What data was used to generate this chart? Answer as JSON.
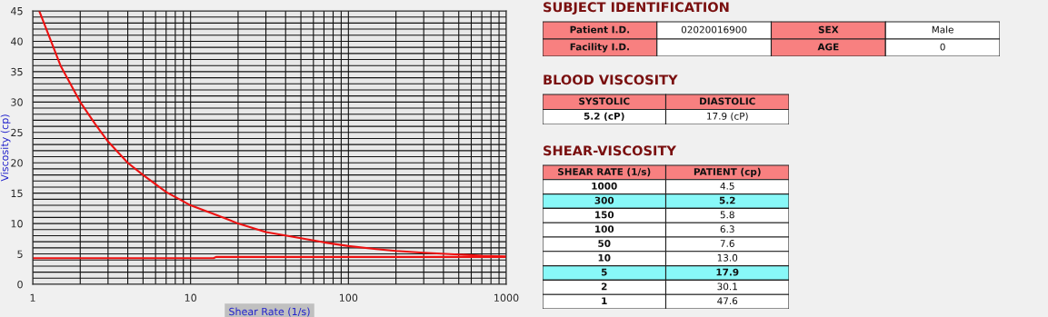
{
  "chart_data": [
    {
      "type": "line",
      "xlabel": "Shear Rate (1/s)",
      "ylabel": "Viscosity (cp)",
      "xlim": [
        1,
        1000
      ],
      "xticks": [
        1,
        10,
        100,
        1000
      ],
      "ylim": [
        0,
        45
      ],
      "yticks": [
        0,
        5,
        10,
        15,
        20,
        25,
        30,
        35,
        40,
        45
      ],
      "log": "x",
      "grid": true,
      "series": [
        {
          "color": "#ee1111",
          "x": [
            1.1,
            1.5,
            2,
            2.5,
            3,
            4,
            5,
            7,
            10,
            15,
            20,
            30,
            50,
            70,
            100,
            150,
            200,
            300,
            500,
            700,
            1000
          ],
          "values": [
            45,
            36,
            30,
            26.3,
            23.5,
            20,
            18,
            15.2,
            13,
            11.3,
            10,
            8.6,
            7.6,
            6.9,
            6.3,
            5.8,
            5.5,
            5.2,
            4.9,
            4.7,
            4.6
          ]
        },
        {
          "color": "#ee1111",
          "x": [
            1,
            14,
            14.5,
            1000
          ],
          "values": [
            4.3,
            4.3,
            4.5,
            4.5
          ]
        }
      ]
    },
    {
      "type": "other",
      "title": "SUBJECT IDENTIFICATION",
      "cell_labels": [
        [
          "Patient I.D.",
          "02020016900",
          "SEX",
          "Male"
        ],
        [
          "Facility I.D.",
          null,
          "AGE",
          "0"
        ]
      ],
      "colors": [
        [
          "#f88080",
          "#ffffff",
          "#f88080",
          "#ffffff"
        ],
        [
          "#f88080",
          "#ffffff",
          "#f88080",
          "#ffffff"
        ]
      ]
    },
    {
      "type": "other",
      "title": "BLOOD VISCOSITY",
      "categories": [
        "SYSTOLIC",
        "DIASTOLIC"
      ],
      "cell_labels": [
        [
          "5.2 (cP)",
          "17.9 (cP)"
        ]
      ],
      "colors": [
        [
          "#ffffff",
          "#ffffff"
        ]
      ]
    },
    {
      "type": "other",
      "title": "SHEAR-VISCOSITY",
      "categories": [
        "SHEAR RATE (1/s)",
        "PATIENT (cp)"
      ],
      "cell_labels": [
        [
          "1000",
          "4.5"
        ],
        [
          "300",
          "5.2"
        ],
        [
          "150",
          "5.8"
        ],
        [
          "100",
          "6.3"
        ],
        [
          "50",
          "7.6"
        ],
        [
          "10",
          "13.0"
        ],
        [
          "5",
          "17.9"
        ],
        [
          "2",
          "30.1"
        ],
        [
          "1",
          "47.6"
        ]
      ],
      "colors": [
        [
          "#ffffff",
          "#ffffff"
        ],
        [
          "#88f8f8",
          "#88f8f8"
        ],
        [
          "#ffffff",
          "#ffffff"
        ],
        [
          "#ffffff",
          "#ffffff"
        ],
        [
          "#ffffff",
          "#ffffff"
        ],
        [
          "#ffffff",
          "#ffffff"
        ],
        [
          "#88f8f8",
          "#88f8f8"
        ],
        [
          "#ffffff",
          "#ffffff"
        ],
        [
          "#ffffff",
          "#ffffff"
        ]
      ]
    }
  ]
}
